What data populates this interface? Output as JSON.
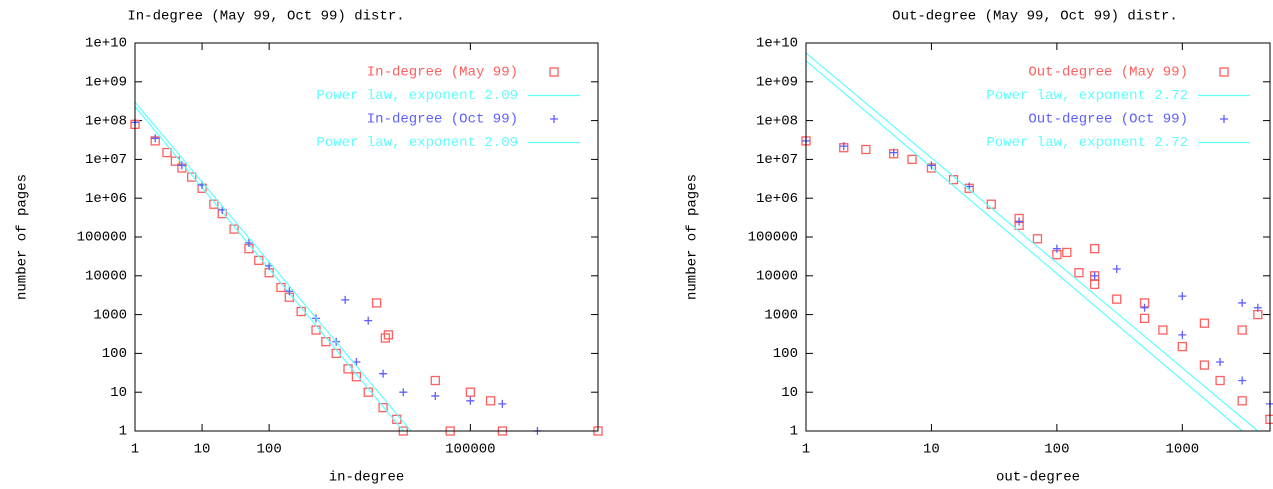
{
  "chart_data": [
    {
      "type": "scatter",
      "title": "In-degree (May 99, Oct 99) distr.",
      "xlabel": "in-degree",
      "ylabel": "number of pages",
      "log_scale": true,
      "legend": "top-right",
      "xlim": [
        1,
        8000000
      ],
      "ylim": [
        1,
        10000000000
      ],
      "xticks": [
        1,
        10,
        100,
        100000
      ],
      "yticks": [
        1,
        10,
        100,
        1000,
        10000,
        100000,
        {
          "value": 1000000,
          "label": "1e+06"
        },
        {
          "value": 10000000,
          "label": "1e+07"
        },
        {
          "value": 100000000,
          "label": "1e+08"
        },
        {
          "value": 1000000000,
          "label": "1e+09"
        },
        {
          "value": 10000000000,
          "label": "1e+10"
        }
      ],
      "series": [
        {
          "name": "In-degree (May 99)",
          "color": "#ff5f5f",
          "marker": "square",
          "x": [
            1,
            2,
            3,
            4,
            5,
            7,
            10,
            15,
            20,
            30,
            50,
            70,
            100,
            150,
            200,
            300,
            500,
            700,
            1000,
            1500,
            2000,
            3000,
            5000,
            8000,
            10000,
            5400,
            4000,
            6000,
            30000,
            100000,
            200000,
            50000,
            300000,
            8000000
          ],
          "values": [
            80000000,
            30000000,
            15000000,
            9000000,
            6000000,
            3500000,
            1800000,
            700000,
            400000,
            160000,
            50000,
            25000,
            12000,
            5000,
            2800,
            1200,
            400,
            200,
            100,
            40,
            25,
            10,
            4,
            2,
            1,
            250,
            2000,
            300,
            20,
            10,
            6,
            1,
            1,
            1
          ]
        },
        {
          "name": "Power law, exponent 2.09",
          "color": "#5fffff",
          "marker": "line",
          "x": [
            1,
            10000
          ],
          "values": [
            230000000,
            1
          ]
        },
        {
          "name": "In-degree (Oct 99)",
          "color": "#5f5fff",
          "marker": "plus",
          "x": [
            1,
            2,
            5,
            10,
            20,
            50,
            100,
            200,
            500,
            1000,
            2000,
            1360,
            3000,
            5000,
            10000,
            30000,
            100000,
            300000,
            1000000
          ],
          "values": [
            90000000,
            35000000,
            7000000,
            2200000,
            500000,
            70000,
            18000,
            4000,
            800,
            200,
            60,
            2400,
            700,
            30,
            10,
            8,
            6,
            5,
            1
          ]
        },
        {
          "name": "Power law, exponent 2.09",
          "color": "#5fffff",
          "marker": "line",
          "x": [
            1,
            13000
          ],
          "values": [
            300000000,
            1
          ]
        }
      ]
    },
    {
      "type": "scatter",
      "title": "Out-degree (May 99, Oct 99) distr.",
      "xlabel": "out-degree",
      "ylabel": "number of pages",
      "log_scale": true,
      "legend": "top-right",
      "xlim": [
        1,
        5000
      ],
      "ylim": [
        1,
        10000000000
      ],
      "xticks": [
        1,
        10,
        100,
        1000
      ],
      "yticks": [
        1,
        10,
        100,
        1000,
        10000,
        100000,
        {
          "value": 1000000,
          "label": "1e+06"
        },
        {
          "value": 10000000,
          "label": "1e+07"
        },
        {
          "value": 100000000,
          "label": "1e+08"
        },
        {
          "value": 1000000000,
          "label": "1e+09"
        },
        {
          "value": 10000000000,
          "label": "1e+10"
        }
      ],
      "series": [
        {
          "name": "Out-degree (May 99)",
          "color": "#ff5f5f",
          "marker": "square",
          "x": [
            1,
            2,
            3,
            5,
            7,
            10,
            15,
            20,
            30,
            50,
            70,
            100,
            150,
            200,
            300,
            500,
            700,
            1000,
            1500,
            2000,
            3000,
            5000,
            50,
            120,
            200,
            200,
            500,
            1500,
            3000,
            4000
          ],
          "values": [
            30000000,
            20000000,
            18000000,
            14000000,
            10000000,
            6000000,
            3000000,
            1800000,
            700000,
            200000,
            90000,
            35000,
            12000,
            6000,
            2500,
            800,
            400,
            150,
            50,
            20,
            6,
            2,
            300000,
            40000,
            50000,
            10000,
            2000,
            600,
            400,
            1000
          ]
        },
        {
          "name": "Power law, exponent 2.72",
          "color": "#5fffff",
          "marker": "line",
          "x": [
            1,
            3000
          ],
          "values": [
            3500000000,
            1
          ]
        },
        {
          "name": "Out-degree (Oct 99)",
          "color": "#5f5fff",
          "marker": "plus",
          "x": [
            1,
            2,
            5,
            10,
            20,
            50,
            100,
            200,
            300,
            500,
            1000,
            2000,
            3000,
            5000,
            1000,
            3000,
            4000
          ],
          "values": [
            30000000,
            22000000,
            15000000,
            7000000,
            2000000,
            250000,
            50000,
            10000,
            15000,
            1500,
            300,
            60,
            20,
            5,
            3000,
            2000,
            1500
          ]
        },
        {
          "name": "Power law, exponent 2.72",
          "color": "#5fffff",
          "marker": "line",
          "x": [
            1,
            4000
          ],
          "values": [
            5500000000,
            1
          ]
        }
      ]
    }
  ]
}
